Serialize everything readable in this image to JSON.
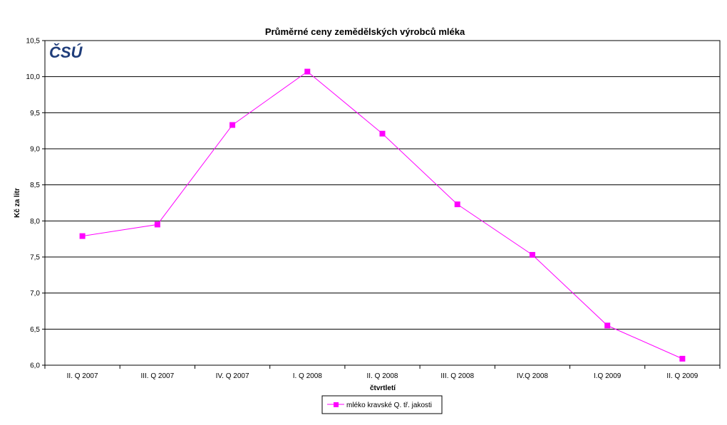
{
  "chart_data": {
    "type": "line",
    "title": "Průměrné ceny zemědělských výrobců mléka",
    "xlabel": "čtvrtletí",
    "ylabel": "Kč za litr",
    "categories": [
      "II. Q 2007",
      "III. Q 2007",
      "IV. Q 2007",
      "I. Q 2008",
      "II. Q 2008",
      "III. Q 2008",
      "IV.Q 2008",
      "I.Q 2009",
      "II. Q 2009"
    ],
    "series": [
      {
        "name": "mléko kravské Q. tř. jakosti",
        "values": [
          7.79,
          7.95,
          9.33,
          10.07,
          9.21,
          8.23,
          7.53,
          6.55,
          6.09
        ],
        "color": "#ff00ff"
      }
    ],
    "ylim": [
      6.0,
      10.5
    ],
    "yticks": [
      "6,0",
      "6,5",
      "7,0",
      "7,5",
      "8,0",
      "8,5",
      "9,0",
      "9,5",
      "10,0",
      "10,5"
    ],
    "grid": true,
    "legend_position": "bottom",
    "logo": {
      "text": "ČSÚ",
      "color": "#1f3d7a"
    }
  }
}
